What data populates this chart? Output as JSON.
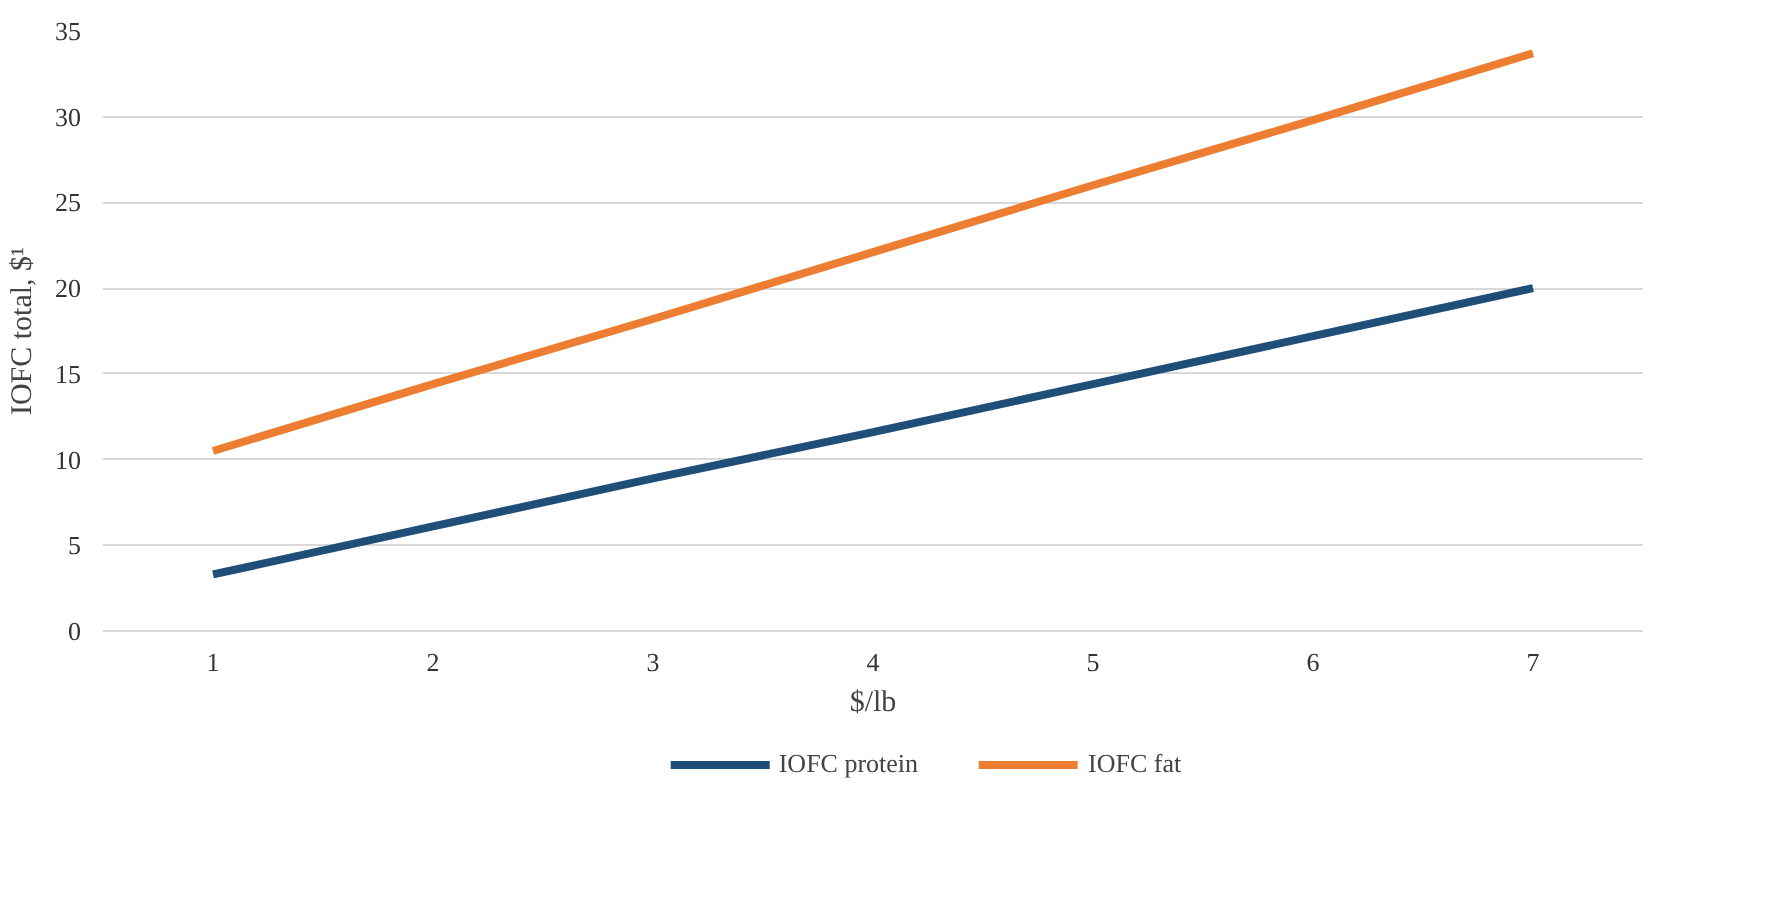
{
  "chart_data": {
    "type": "line",
    "xlabel": "$/lb",
    "ylabel": "IOFC total, $¹",
    "categories": [
      "1",
      "2",
      "3",
      "4",
      "5",
      "6",
      "7"
    ],
    "series": [
      {
        "name": "IOFC protein",
        "color": "#1f4e79",
        "values": [
          3.3,
          6.1,
          8.9,
          11.6,
          14.4,
          17.2,
          20.0
        ]
      },
      {
        "name": "IOFC fat",
        "color": "#ed7d31",
        "values": [
          10.5,
          14.4,
          18.2,
          22.1,
          26.0,
          29.8,
          33.7
        ]
      }
    ],
    "ylim": [
      0,
      35
    ],
    "yticks": [
      0,
      5,
      10,
      15,
      20,
      25,
      30,
      35
    ],
    "grid": "y",
    "legend": "bottom",
    "line_style": "solid",
    "marker": "none"
  }
}
